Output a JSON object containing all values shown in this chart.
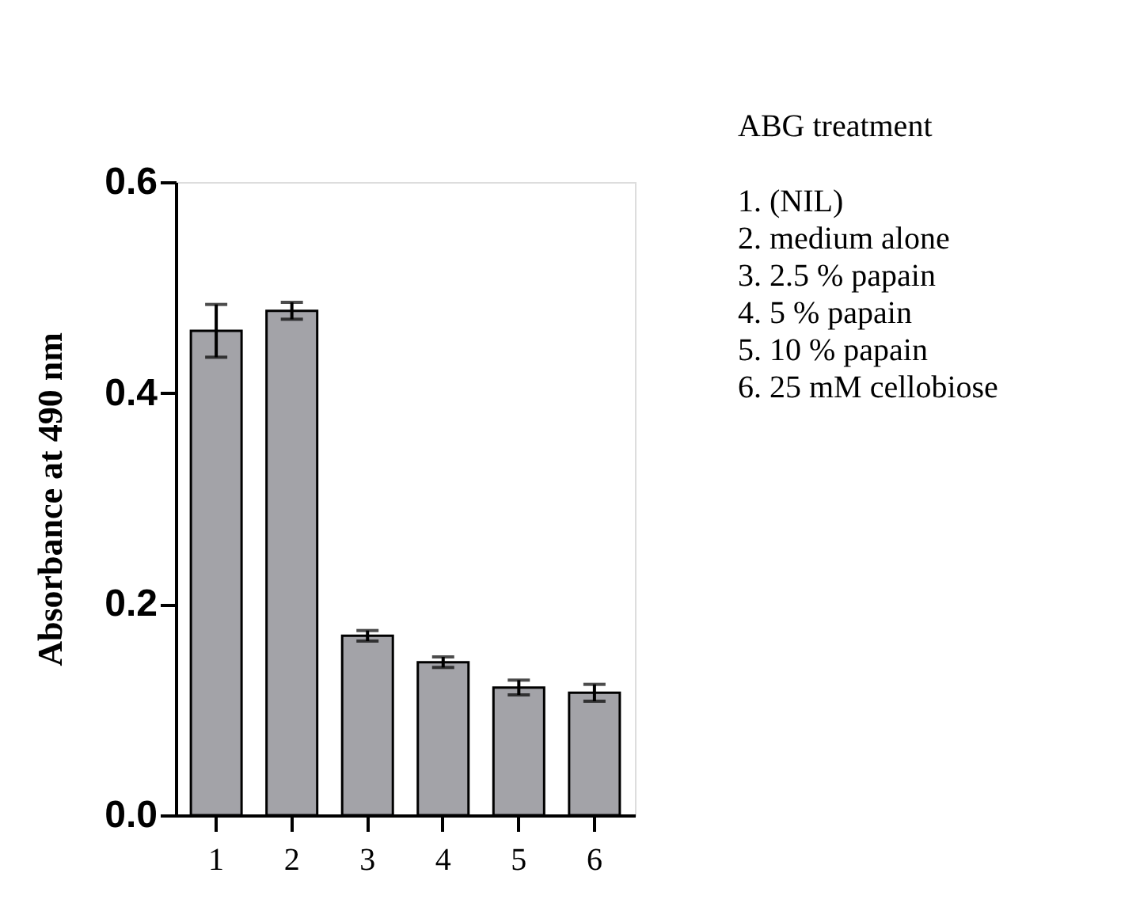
{
  "chart_data": {
    "type": "bar",
    "ylabel": "Absorbance at 490 nm",
    "categories": [
      "1",
      "2",
      "3",
      "4",
      "5",
      "6"
    ],
    "values": [
      0.459,
      0.478,
      0.17,
      0.145,
      0.121,
      0.116
    ],
    "errors": [
      0.025,
      0.008,
      0.005,
      0.005,
      0.007,
      0.008
    ],
    "color": "#a3a3a8",
    "ylim": [
      0,
      0.6
    ],
    "yticks": [
      {
        "value": 0,
        "label": "0.0"
      },
      {
        "value": 0.2,
        "label": "0.2"
      },
      {
        "value": 0.4,
        "label": "0.4"
      },
      {
        "value": 0.6,
        "label": "0.6"
      }
    ],
    "grid": false,
    "annotations": [
      "ABG treatment",
      "1. (NIL)",
      "2. medium alone",
      "3. 2.5 % papain",
      "4. 5 % papain",
      "5. 10 % papain",
      "6. 25 mM cellobiose"
    ]
  }
}
